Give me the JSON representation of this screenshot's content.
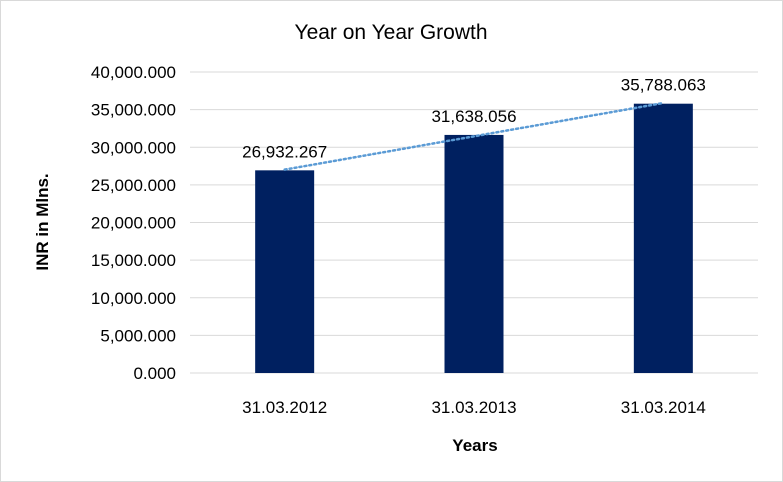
{
  "chart_data": {
    "type": "bar",
    "title": "Year on Year Growth",
    "xlabel": "Years",
    "ylabel": "INR in Mlns.",
    "categories": [
      "31.03.2012",
      "31.03.2013",
      "31.03.2014"
    ],
    "values": [
      26932.267,
      31638.056,
      35788.063
    ],
    "data_labels": [
      "26,932.267",
      "31,638.056",
      "35,788.063"
    ],
    "ylim": [
      0,
      40000
    ],
    "y_ticks": [
      0,
      5000,
      10000,
      15000,
      20000,
      25000,
      30000,
      35000,
      40000
    ],
    "y_tick_labels": [
      "0.000",
      "5,000.000",
      "10,000.000",
      "15,000.000",
      "20,000.000",
      "25,000.000",
      "30,000.000",
      "35,000.000",
      "40,000.000"
    ],
    "grid": true,
    "legend": "none",
    "trendline": "linear",
    "colors": {
      "bar": "#002060",
      "trendline": "#5b9bd5",
      "grid": "#d9d9d9"
    }
  }
}
